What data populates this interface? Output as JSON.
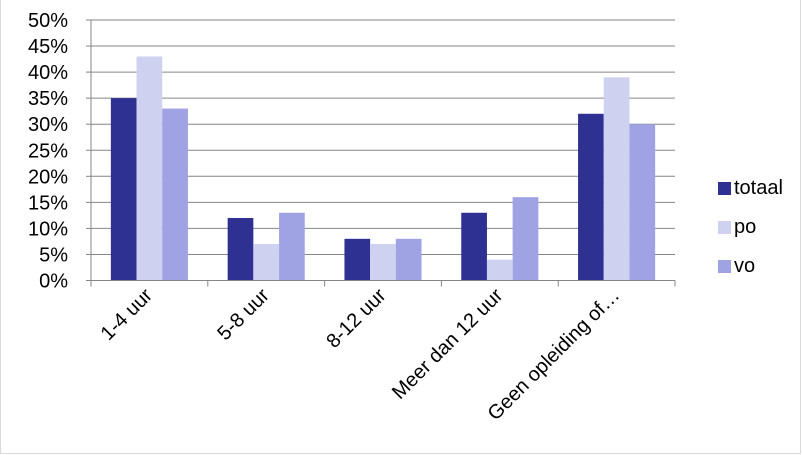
{
  "chart_data": {
    "type": "bar",
    "categories": [
      "1-4 uur",
      "5-8 uur",
      "8-12 uur",
      "Meer dan 12 uur",
      "Geen opleiding of…"
    ],
    "series": [
      {
        "name": "totaal",
        "color": "#2e3192",
        "values": [
          35,
          12,
          8,
          13,
          32
        ]
      },
      {
        "name": "po",
        "color": "#cfd1f0",
        "values": [
          43,
          7,
          7,
          4,
          39
        ]
      },
      {
        "name": "vo",
        "color": "#9fa3e3",
        "values": [
          33,
          13,
          8,
          16,
          30
        ]
      }
    ],
    "y_tick_labels": [
      "0%",
      "5%",
      "10%",
      "15%",
      "20%",
      "25%",
      "30%",
      "35%",
      "40%",
      "45%",
      "50%"
    ],
    "ylim": [
      0,
      50
    ],
    "y_unit": "%",
    "grid": "horizontal",
    "legend_position": "right"
  }
}
